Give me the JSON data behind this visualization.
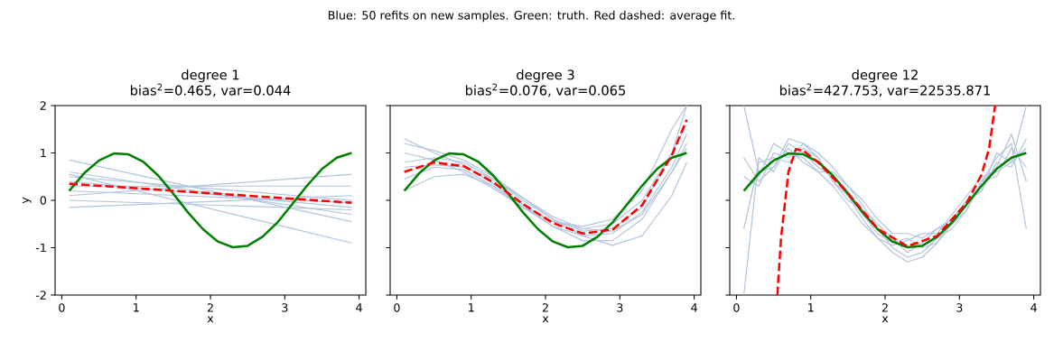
{
  "chart_data": [
    {
      "type": "line",
      "title": "degree 1",
      "subtitle": "bias$^{2}$=0.465, var=0.044",
      "xlabel": "x",
      "ylabel": "y",
      "annotations": [
        "Blue: 50 refits on new samples.  Green: truth.  Red dashed: average fit."
      ],
      "xlim": [
        -0.09,
        4.09
      ],
      "ylim": [
        -2,
        2
      ],
      "xticks": [
        0,
        1,
        2,
        3,
        4
      ],
      "yticks": [
        -2,
        -1,
        0,
        1,
        2
      ],
      "series": [
        {
          "color": "#b0c4de",
          "line_style": "solid",
          "x": [
            0.1,
            3.9
          ],
          "values": [
            0.85,
            -0.45
          ]
        },
        {
          "color": "#b0c4de",
          "line_style": "solid",
          "x": [
            0.1,
            3.9
          ],
          "values": [
            0.6,
            -0.3
          ]
        },
        {
          "color": "#b0c4de",
          "line_style": "solid",
          "x": [
            0.1,
            3.9
          ],
          "values": [
            0.5,
            0.0
          ]
        },
        {
          "color": "#b0c4de",
          "line_style": "solid",
          "x": [
            0.1,
            3.9
          ],
          "values": [
            0.4,
            -0.15
          ]
        },
        {
          "color": "#b0c4de",
          "line_style": "solid",
          "x": [
            0.1,
            3.9
          ],
          "values": [
            0.3,
            0.3
          ]
        },
        {
          "color": "#b0c4de",
          "line_style": "solid",
          "x": [
            0.1,
            3.9
          ],
          "values": [
            0.2,
            -0.05
          ]
        },
        {
          "color": "#b0c4de",
          "line_style": "solid",
          "x": [
            0.1,
            3.9
          ],
          "values": [
            0.1,
            0.55
          ]
        },
        {
          "color": "#b0c4de",
          "line_style": "solid",
          "x": [
            0.1,
            3.9
          ],
          "values": [
            0.0,
            -0.2
          ]
        },
        {
          "color": "#b0c4de",
          "line_style": "solid",
          "x": [
            0.1,
            3.9
          ],
          "values": [
            0.55,
            -0.9
          ]
        },
        {
          "color": "#b0c4de",
          "line_style": "solid",
          "x": [
            0.1,
            3.9
          ],
          "values": [
            -0.15,
            0.1
          ]
        },
        {
          "color": "#008000",
          "line_style": "solid",
          "x": [
            0.1,
            0.3,
            0.5,
            0.7,
            0.9,
            1.1,
            1.3,
            1.5,
            1.7,
            1.9,
            2.1,
            2.3,
            2.5,
            2.7,
            2.9,
            3.1,
            3.3,
            3.5,
            3.7,
            3.9
          ],
          "values": [
            0.2,
            0.57,
            0.84,
            0.99,
            0.97,
            0.81,
            0.52,
            0.14,
            -0.26,
            -0.61,
            -0.87,
            -0.99,
            -0.96,
            -0.77,
            -0.47,
            -0.08,
            0.31,
            0.66,
            0.9,
            1.0
          ]
        },
        {
          "color": "#ff0000",
          "line_style": "dashed",
          "x": [
            0.1,
            3.9
          ],
          "values": [
            0.35,
            -0.05
          ]
        }
      ]
    },
    {
      "type": "line",
      "title": "degree 3",
      "subtitle": "bias$^{2}$=0.076, var=0.065",
      "xlabel": "x",
      "xlim": [
        -0.09,
        4.09
      ],
      "ylim": [
        -2,
        2
      ],
      "xticks": [
        0,
        1,
        2,
        3,
        4
      ],
      "yticks": [
        -2,
        -1,
        0,
        1,
        2
      ],
      "tick_labels": "x",
      "series": [
        {
          "color": "#b0c4de",
          "line_style": "solid",
          "x": [
            0.1,
            0.5,
            0.9,
            1.3,
            1.7,
            2.1,
            2.5,
            2.9,
            3.3,
            3.7,
            3.9
          ],
          "values": [
            1.3,
            1.0,
            0.75,
            0.35,
            -0.1,
            -0.45,
            -0.6,
            -0.5,
            0.0,
            1.0,
            1.6
          ]
        },
        {
          "color": "#b0c4de",
          "line_style": "solid",
          "x": [
            0.1,
            0.5,
            0.9,
            1.3,
            1.7,
            2.1,
            2.5,
            2.9,
            3.3,
            3.7,
            3.9
          ],
          "values": [
            0.2,
            0.5,
            0.55,
            0.3,
            -0.1,
            -0.55,
            -0.85,
            -0.85,
            -0.4,
            0.6,
            1.2
          ]
        },
        {
          "color": "#b0c4de",
          "line_style": "solid",
          "x": [
            0.1,
            0.5,
            0.9,
            1.3,
            1.7,
            2.1,
            2.5,
            2.9,
            3.3,
            3.7,
            3.9
          ],
          "values": [
            0.8,
            0.9,
            0.8,
            0.45,
            0.0,
            -0.4,
            -0.65,
            -0.6,
            -0.15,
            1.0,
            2.0
          ]
        },
        {
          "color": "#b0c4de",
          "line_style": "solid",
          "x": [
            0.1,
            0.5,
            0.9,
            1.3,
            1.7,
            2.1,
            2.5,
            2.9,
            3.3,
            3.7,
            3.9
          ],
          "values": [
            0.45,
            0.7,
            0.65,
            0.3,
            -0.15,
            -0.55,
            -0.75,
            -0.7,
            -0.25,
            0.7,
            1.4
          ]
        },
        {
          "color": "#b0c4de",
          "line_style": "solid",
          "x": [
            0.1,
            0.5,
            0.9,
            1.3,
            1.7,
            2.1,
            2.5,
            2.9,
            3.3,
            3.7,
            3.9
          ],
          "values": [
            1.0,
            0.85,
            0.6,
            0.25,
            -0.15,
            -0.45,
            -0.55,
            -0.4,
            0.2,
            1.5,
            2.0
          ]
        },
        {
          "color": "#b0c4de",
          "line_style": "solid",
          "x": [
            0.1,
            0.5,
            0.9,
            1.3,
            1.7,
            2.1,
            2.5,
            2.9,
            3.3,
            3.7,
            3.9
          ],
          "values": [
            0.7,
            0.75,
            0.7,
            0.45,
            0.05,
            -0.4,
            -0.75,
            -0.95,
            -0.75,
            0.1,
            0.8
          ]
        },
        {
          "color": "#b0c4de",
          "line_style": "solid",
          "x": [
            0.1,
            0.5,
            0.9,
            1.3,
            1.7,
            2.1,
            2.5,
            2.9,
            3.3,
            3.7,
            3.9
          ],
          "values": [
            1.2,
            1.05,
            0.85,
            0.5,
            0.05,
            -0.35,
            -0.6,
            -0.65,
            -0.3,
            0.6,
            1.1
          ]
        },
        {
          "color": "#008000",
          "line_style": "solid",
          "x": [
            0.1,
            0.3,
            0.5,
            0.7,
            0.9,
            1.1,
            1.3,
            1.5,
            1.7,
            1.9,
            2.1,
            2.3,
            2.5,
            2.7,
            2.9,
            3.1,
            3.3,
            3.5,
            3.7,
            3.9
          ],
          "values": [
            0.2,
            0.57,
            0.84,
            0.99,
            0.97,
            0.81,
            0.52,
            0.14,
            -0.26,
            -0.61,
            -0.87,
            -0.99,
            -0.96,
            -0.77,
            -0.47,
            -0.08,
            0.31,
            0.66,
            0.9,
            1.0
          ]
        },
        {
          "color": "#ff0000",
          "line_style": "dashed",
          "x": [
            0.1,
            0.5,
            0.9,
            1.3,
            1.7,
            2.1,
            2.5,
            2.9,
            3.3,
            3.7,
            3.9
          ],
          "values": [
            0.6,
            0.8,
            0.72,
            0.38,
            -0.08,
            -0.48,
            -0.7,
            -0.62,
            -0.1,
            0.95,
            1.7
          ]
        }
      ]
    },
    {
      "type": "line",
      "title": "degree 12",
      "subtitle": "bias$^{2}$=427.753, var=22535.871",
      "xlabel": "x",
      "xlim": [
        -0.09,
        4.09
      ],
      "ylim": [
        -2,
        2
      ],
      "xticks": [
        0,
        1,
        2,
        3,
        4
      ],
      "yticks": [
        -2,
        -1,
        0,
        1,
        2
      ],
      "tick_labels": "x",
      "series": [
        {
          "color": "#b0c4de",
          "line_style": "solid",
          "x": [
            0.1,
            0.3,
            0.5,
            0.7,
            0.9,
            1.1,
            1.3,
            1.5,
            1.7,
            1.9,
            2.1,
            2.3,
            2.5,
            2.7,
            2.9,
            3.1,
            3.3,
            3.5,
            3.7,
            3.9
          ],
          "values": [
            -2.0,
            0.9,
            0.6,
            1.2,
            1.0,
            0.7,
            0.5,
            0.2,
            -0.3,
            -0.7,
            -0.9,
            -0.8,
            -1.0,
            -0.9,
            -0.5,
            -0.1,
            0.4,
            0.5,
            1.1,
            0.7
          ]
        },
        {
          "color": "#b0c4de",
          "line_style": "solid",
          "x": [
            0.1,
            0.3,
            0.5,
            0.7,
            0.9,
            1.1,
            1.3,
            1.5,
            1.7,
            1.9,
            2.1,
            2.3,
            2.5,
            2.7,
            2.9,
            3.1,
            3.3,
            3.5,
            3.7,
            3.9
          ],
          "values": [
            0.5,
            0.3,
            1.0,
            0.9,
            1.2,
            0.9,
            0.4,
            0.0,
            -0.2,
            -0.5,
            -0.8,
            -1.1,
            -0.9,
            -0.6,
            -0.4,
            0.0,
            0.2,
            0.8,
            0.7,
            1.3
          ]
        },
        {
          "color": "#b0c4de",
          "line_style": "solid",
          "x": [
            0.1,
            0.3,
            0.5,
            0.7,
            0.9,
            1.1,
            1.3,
            1.5,
            1.7,
            1.9,
            2.1,
            2.3,
            2.5,
            2.7,
            2.9,
            3.1,
            3.3,
            3.5,
            3.7,
            3.9
          ],
          "values": [
            2.0,
            0.6,
            0.7,
            1.1,
            0.8,
            0.6,
            0.6,
            0.3,
            -0.1,
            -0.6,
            -1.0,
            -1.2,
            -1.1,
            -0.8,
            -0.6,
            -0.2,
            0.4,
            0.9,
            1.2,
            -0.6
          ]
        },
        {
          "color": "#b0c4de",
          "line_style": "solid",
          "x": [
            0.1,
            0.3,
            0.5,
            0.7,
            0.9,
            1.1,
            1.3,
            1.5,
            1.7,
            1.9,
            2.1,
            2.3,
            2.5,
            2.7,
            2.9,
            3.1,
            3.3,
            3.5,
            3.7,
            3.9
          ],
          "values": [
            -0.6,
            0.8,
            0.9,
            0.8,
            1.1,
            0.9,
            0.4,
            0.1,
            -0.4,
            -0.8,
            -0.95,
            -0.85,
            -0.7,
            -0.7,
            -0.3,
            0.1,
            0.5,
            0.6,
            0.8,
            2.0
          ]
        },
        {
          "color": "#b0c4de",
          "line_style": "solid",
          "x": [
            0.1,
            0.3,
            0.5,
            0.7,
            0.9,
            1.1,
            1.3,
            1.5,
            1.7,
            1.9,
            2.1,
            2.3,
            2.5,
            2.7,
            2.9,
            3.1,
            3.3,
            3.5,
            3.7,
            3.9
          ],
          "values": [
            0.2,
            0.5,
            1.2,
            1.0,
            0.9,
            0.6,
            0.3,
            -0.1,
            -0.5,
            -0.8,
            -1.1,
            -1.3,
            -1.2,
            -0.9,
            -0.4,
            0.0,
            0.2,
            1.0,
            0.8,
            1.1
          ]
        },
        {
          "color": "#b0c4de",
          "line_style": "solid",
          "x": [
            0.1,
            0.3,
            0.5,
            0.7,
            0.9,
            1.1,
            1.3,
            1.5,
            1.7,
            1.9,
            2.1,
            2.3,
            2.5,
            2.7,
            2.9,
            3.1,
            3.3,
            3.5,
            3.7,
            3.9
          ],
          "values": [
            0.9,
            0.4,
            0.7,
            1.3,
            1.2,
            1.0,
            0.7,
            0.3,
            0.0,
            -0.4,
            -0.7,
            -0.7,
            -0.8,
            -0.6,
            -0.5,
            -0.2,
            0.4,
            0.7,
            1.4,
            0.4
          ]
        },
        {
          "color": "#008000",
          "line_style": "solid",
          "x": [
            0.1,
            0.3,
            0.5,
            0.7,
            0.9,
            1.1,
            1.3,
            1.5,
            1.7,
            1.9,
            2.1,
            2.3,
            2.5,
            2.7,
            2.9,
            3.1,
            3.3,
            3.5,
            3.7,
            3.9
          ],
          "values": [
            0.2,
            0.57,
            0.84,
            0.99,
            0.97,
            0.81,
            0.52,
            0.14,
            -0.26,
            -0.61,
            -0.87,
            -0.99,
            -0.96,
            -0.77,
            -0.47,
            -0.08,
            0.31,
            0.66,
            0.9,
            1.0
          ]
        },
        {
          "color": "#ff0000",
          "line_style": "dashed",
          "x": [
            0.55,
            0.6,
            0.7,
            0.8,
            0.9,
            1.1,
            1.5,
            1.9,
            2.3,
            2.7,
            3.1,
            3.3,
            3.4,
            3.48
          ],
          "values": [
            -2.0,
            -0.8,
            0.6,
            1.08,
            1.05,
            0.8,
            0.15,
            -0.6,
            -0.97,
            -0.75,
            -0.05,
            0.55,
            1.1,
            2.0
          ]
        }
      ]
    }
  ]
}
